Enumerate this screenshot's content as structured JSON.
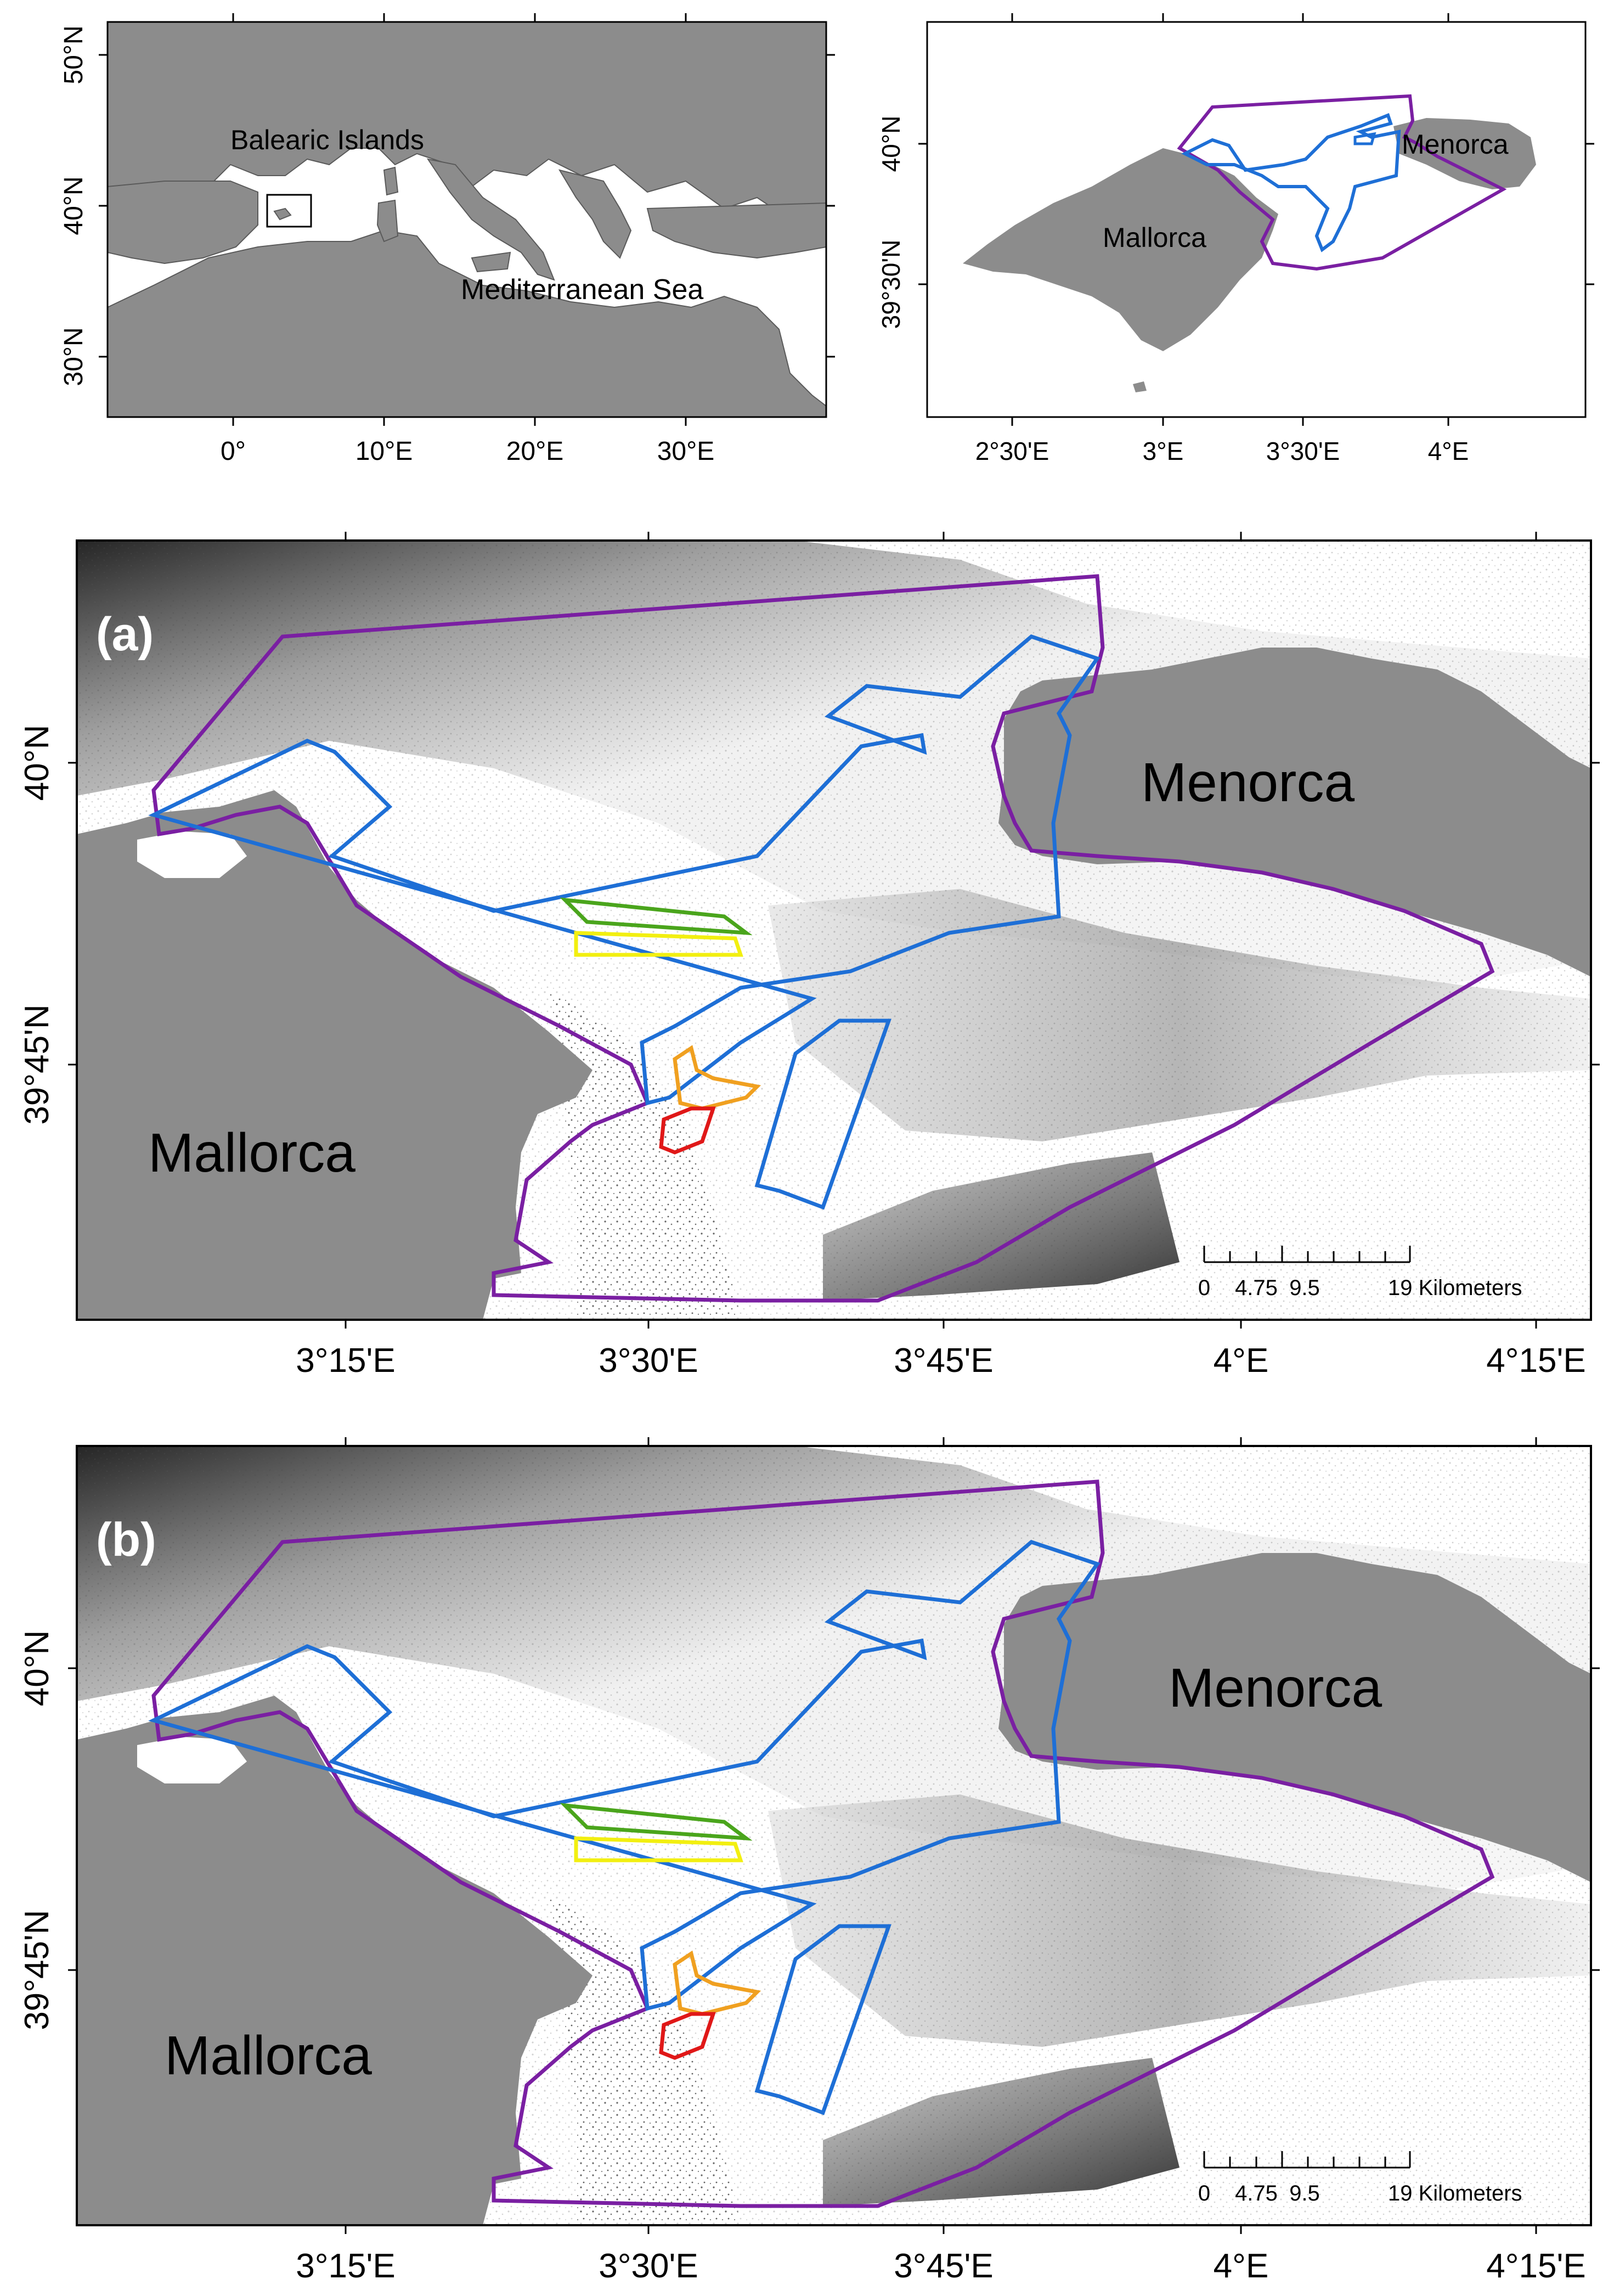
{
  "colors": {
    "land": "#8c8c8c",
    "sea": "#ffffff",
    "outer_boundary": "#7a1fa2",
    "inner_boundary": "#1e6fd6",
    "green_box": "#4aa51c",
    "yellow_box": "#f2ef10",
    "orange_box": "#f0a020",
    "red_box": "#e01818",
    "frame": "#000000"
  },
  "overview_map": {
    "labels": {
      "region": "Balearic Islands",
      "sea": "Mediterranean Sea"
    },
    "lat_ticks": [
      "50°N",
      "40°N",
      "30°N"
    ],
    "lon_ticks": [
      "0°",
      "10°E",
      "20°E",
      "30°E"
    ]
  },
  "inset_map": {
    "labels": {
      "mallorca": "Mallorca",
      "menorca": "Menorca"
    },
    "lat_ticks": [
      "40°N",
      "39°30'N"
    ],
    "lon_ticks": [
      "2°30'E",
      "3°E",
      "3°30'E",
      "4°E"
    ]
  },
  "panel_a": {
    "letter": "(a)",
    "labels": {
      "mallorca": "Mallorca",
      "menorca": "Menorca"
    },
    "lat_ticks": [
      "40°N",
      "39°45'N"
    ],
    "lon_ticks": [
      "3°15'E",
      "3°30'E",
      "3°45'E",
      "4°E",
      "4°15'E"
    ],
    "scale_bar": {
      "ticks": [
        "0",
        "4.75",
        "9.5",
        "19 Kilometers"
      ]
    }
  },
  "panel_b": {
    "letter": "(b)",
    "labels": {
      "mallorca": "Mallorca",
      "menorca": "Menorca"
    },
    "lat_ticks": [
      "40°N",
      "39°45'N"
    ],
    "lon_ticks": [
      "3°15'E",
      "3°30'E",
      "3°45'E",
      "4°E",
      "4°15'E"
    ],
    "scale_bar": {
      "ticks": [
        "0",
        "4.75",
        "9.5",
        "19 Kilometers"
      ]
    }
  }
}
